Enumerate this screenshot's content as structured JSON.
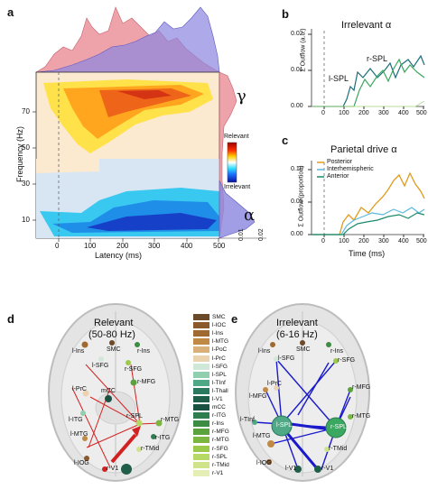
{
  "panels": {
    "a": {
      "letter": "a",
      "xlabel": "Latency (ms)",
      "ylabel": "Frequency (Hz)",
      "xticks": [
        "0",
        "100",
        "200",
        "300",
        "400",
        "500"
      ],
      "yticks": [
        "10",
        "30",
        "50",
        "70"
      ],
      "rticks": [
        "0.01",
        "0.02"
      ],
      "colorbar_top": "Relevant",
      "colorbar_bottom": "Irrelevant",
      "gamma": "γ",
      "alpha": "α"
    },
    "b": {
      "letter": "b",
      "title": "Irrelevant α",
      "ylabel": "Σ Outflow (a.u.)",
      "yticks": [
        "0.00",
        "0.01",
        "0.02"
      ],
      "xticks": [
        "0",
        "100",
        "200",
        "300",
        "400",
        "500"
      ],
      "label_lspl": "l-SPL",
      "label_rspl": "r-SPL"
    },
    "c": {
      "letter": "c",
      "title": "Parietal drive α",
      "ylabel": "Σ Outflow (proportion)",
      "yticks": [
        "0.00",
        "0.05",
        "0.10"
      ],
      "xticks": [
        "0",
        "100",
        "200",
        "300",
        "400",
        "500"
      ],
      "xlabel": "Time (ms)",
      "legend": [
        "Posterior",
        "Interhemispheric",
        "Anterior"
      ]
    },
    "d": {
      "letter": "d",
      "title_line1": "Relevant",
      "title_line2": "(50-80 Hz)",
      "nodes": [
        "l-Ins",
        "SMC",
        "r-Ins",
        "l-SFG",
        "r-SFG",
        "l-PrC",
        "mCC",
        "r-MFG",
        "l-ITG",
        "r-SPL",
        "r-MTG",
        "r-ITG",
        "l-MTG",
        "r-TMid",
        "l-IOG",
        "r-V1"
      ]
    },
    "e": {
      "letter": "e",
      "title_line1": "Irrelevant",
      "title_line2": "(6-16 Hz)",
      "nodes": [
        "l-SFG",
        "r-SFG",
        "l-Ins",
        "SMC",
        "r-Ins",
        "l-MFG",
        "r-MFG",
        "l-PrC",
        "l-SPL",
        "r-SPL",
        "r-MTG",
        "l-TInf",
        "l-MTG",
        "r-TMid",
        "l-IOG",
        "r-V1",
        "l-V1"
      ]
    }
  },
  "region_legend": [
    {
      "label": "SMC",
      "color": "#6b4a2a"
    },
    {
      "label": "l-IOC",
      "color": "#8a5a2c"
    },
    {
      "label": "l-Ins",
      "color": "#a0692f"
    },
    {
      "label": "l-MTG",
      "color": "#c08a45"
    },
    {
      "label": "l-PoC",
      "color": "#d9b07a"
    },
    {
      "label": "l-PrC",
      "color": "#ecd3b0"
    },
    {
      "label": "l-SFG",
      "color": "#cfe8d8"
    },
    {
      "label": "l-SPL",
      "color": "#8fcfb0"
    },
    {
      "label": "l-TInf",
      "color": "#4fa886"
    },
    {
      "label": "l-Thall",
      "color": "#2b7a5f"
    },
    {
      "label": "l-V1",
      "color": "#1f5f4a"
    },
    {
      "label": "mCC",
      "color": "#1a5241"
    },
    {
      "label": "r-ITG",
      "color": "#2f7d4f"
    },
    {
      "label": "r-Ins",
      "color": "#3d8c44"
    },
    {
      "label": "r-MFG",
      "color": "#5ba23c"
    },
    {
      "label": "r-MTG",
      "color": "#7ab640"
    },
    {
      "label": "r-SFG",
      "color": "#9bc94a"
    },
    {
      "label": "r-SPL",
      "color": "#b6d864"
    },
    {
      "label": "r-TMid",
      "color": "#cfe48a"
    },
    {
      "label": "r-V1",
      "color": "#e5efb5"
    }
  ],
  "colors": {
    "relevant_red": "#e8848f",
    "irrelevant_blue": "#8b86e0",
    "arrow_red": "#d32020",
    "arrow_blue": "#1a1acc",
    "posterior": "#e09a1a",
    "interhemispheric": "#5bb8e0",
    "anterior": "#1a8a6a",
    "green_line": "#2b8f5a",
    "teal_line": "#1c6e7a"
  }
}
